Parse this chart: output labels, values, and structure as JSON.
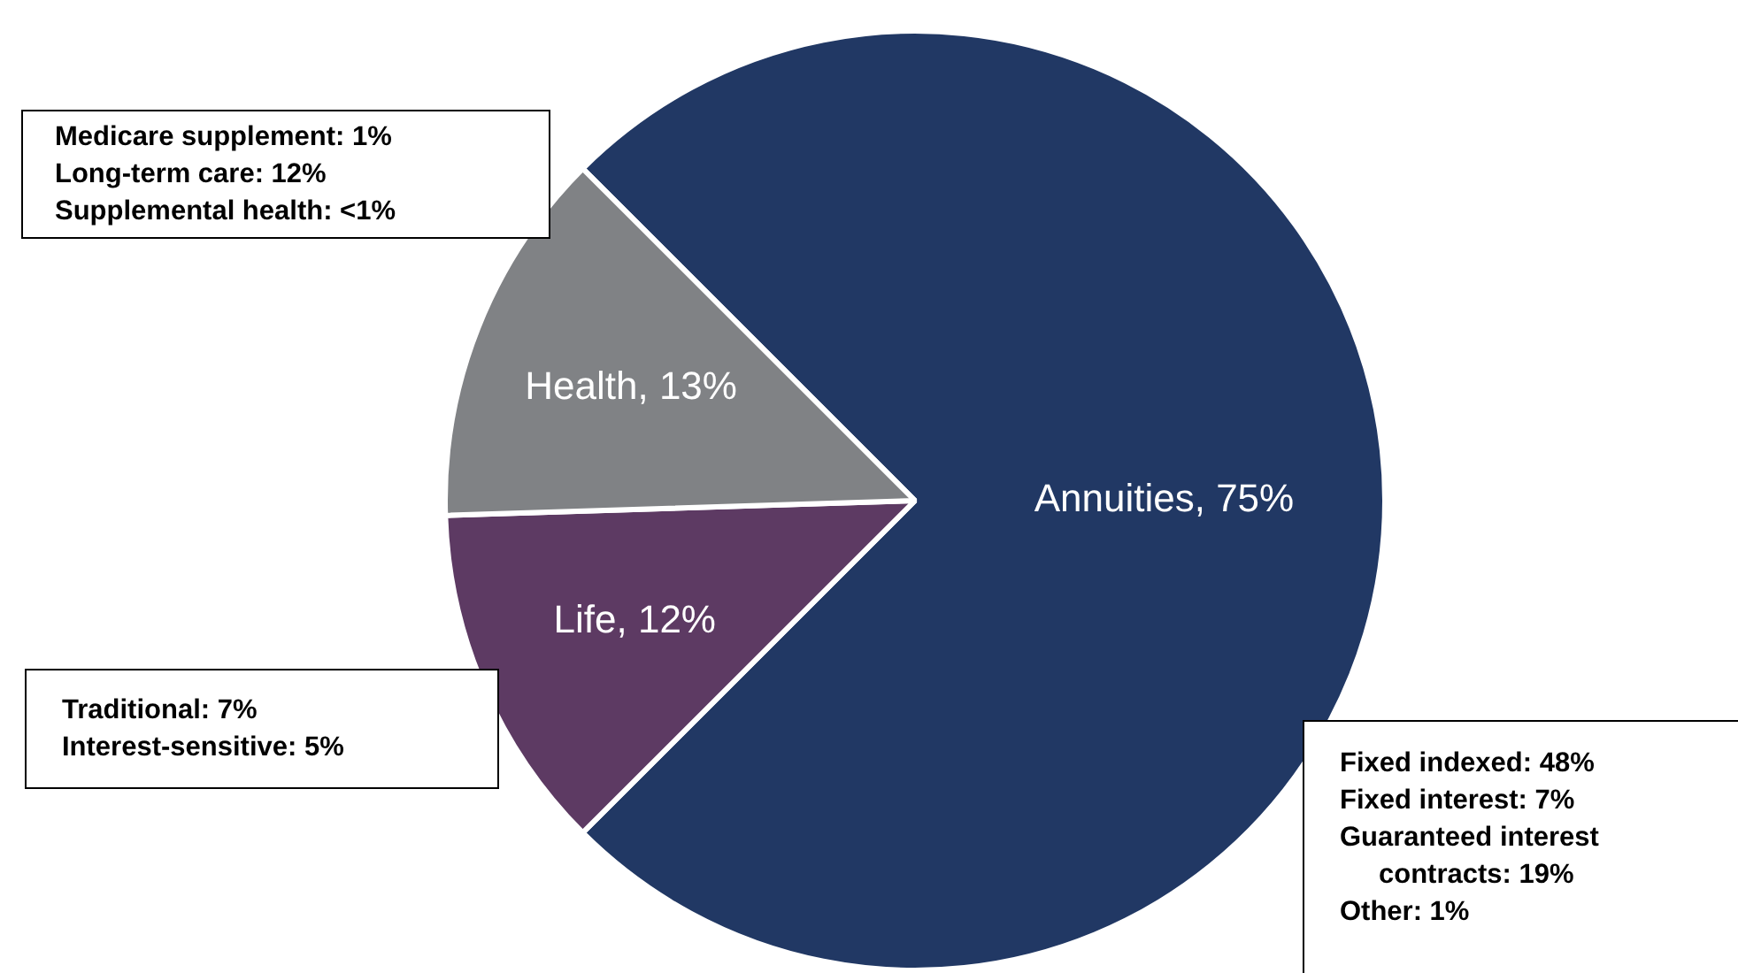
{
  "chart_data": {
    "type": "pie",
    "categories": [
      "Annuities",
      "Life",
      "Health"
    ],
    "values": [
      75,
      12,
      13
    ],
    "value_labels": [
      "75%",
      "12%",
      "13%"
    ],
    "colors": [
      "#213864",
      "#5d3a63",
      "#808285"
    ],
    "legend": false,
    "annotations": [
      "Medicare supplement: 1%\nLong-term care: 12%\nSupplemental health: <1%",
      "Traditional: 7%\nInterest-sensitive: 5%",
      "Fixed indexed: 48%\nFixed interest: 7%\nGuaranteed interest contracts: 19%\nOther: 1%"
    ]
  }
}
